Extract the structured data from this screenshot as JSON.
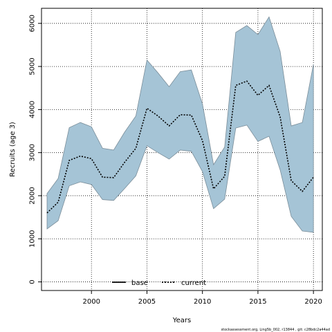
{
  "chart_data": {
    "type": "area",
    "title": "",
    "xlabel": "Years",
    "ylabel": "Recruits (age 3)",
    "xlim": [
      1995.5,
      2020.8
    ],
    "ylim": [
      -200,
      6350
    ],
    "x_ticks": [
      2000,
      2005,
      2010,
      2015,
      2020
    ],
    "y_ticks": [
      0,
      1000,
      2000,
      3000,
      4000,
      5000,
      6000
    ],
    "grid": true,
    "legend_position": "bottom-center",
    "legend": [
      {
        "name": "base",
        "style": "solid",
        "color": "#000000"
      },
      {
        "name": "current",
        "style": "dotted",
        "color": "#000000"
      }
    ],
    "x": [
      1996,
      1997,
      1998,
      1999,
      2000,
      2001,
      2002,
      2003,
      2004,
      2005,
      2006,
      2007,
      2008,
      2009,
      2010,
      2011,
      2012,
      2013,
      2014,
      2015,
      2016,
      2017,
      2018,
      2019,
      2020
    ],
    "series": [
      {
        "name": "current",
        "values": [
          1600,
          1850,
          2820,
          2920,
          2860,
          2430,
          2420,
          2780,
          3100,
          4030,
          3850,
          3620,
          3880,
          3870,
          3280,
          2160,
          2450,
          4560,
          4660,
          4330,
          4560,
          3830,
          2350,
          2100,
          2430
        ]
      },
      {
        "name": "upper",
        "values": [
          2050,
          2400,
          3580,
          3700,
          3600,
          3100,
          3060,
          3480,
          3850,
          5150,
          4850,
          4530,
          4880,
          4920,
          4130,
          2720,
          3130,
          5790,
          5950,
          5740,
          6150,
          5350,
          3620,
          3700,
          5050
        ]
      },
      {
        "name": "lower",
        "values": [
          1230,
          1420,
          2230,
          2320,
          2260,
          1910,
          1890,
          2170,
          2460,
          3160,
          3000,
          2850,
          3060,
          3030,
          2560,
          1700,
          1920,
          3570,
          3640,
          3260,
          3380,
          2600,
          1520,
          1180,
          1150
        ]
      }
    ],
    "band_color": "#a5c4d6",
    "band_edge_color": "#7a8d99"
  },
  "footer": "stockassessment.org, Ling5b_002, r13844 , git: c28bdc2a44ad"
}
